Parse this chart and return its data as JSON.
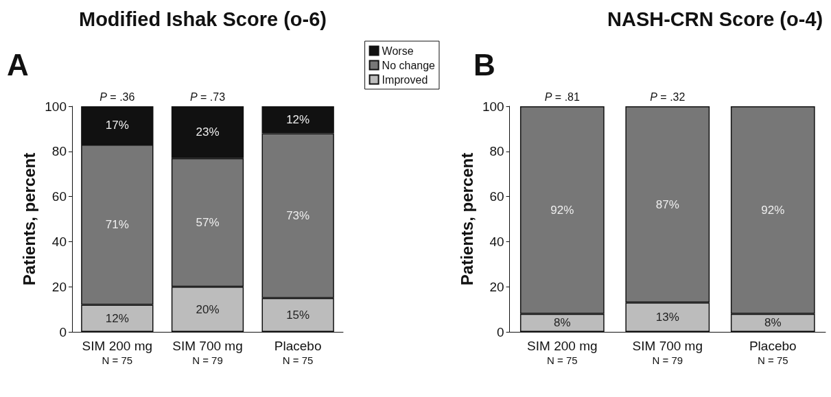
{
  "chart_data": [
    {
      "type": "bar",
      "title": "Modified Ishak Score (o-6)",
      "ylabel": "Patients, percent",
      "stacked": true,
      "categories": [
        "SIM 200 mg\nN = 75",
        "SIM 700 mg\nN = 79",
        "Placebo\nN = 75"
      ],
      "series": [
        {
          "name": "Improved",
          "color": "#bcbcbc",
          "values": [
            12,
            20,
            15
          ],
          "value_labels": [
            "12%",
            "20%",
            "15%"
          ]
        },
        {
          "name": "No change",
          "color": "#777777",
          "values": [
            71,
            57,
            73
          ],
          "value_labels": [
            "71%",
            "57%",
            "73%"
          ]
        },
        {
          "name": "Worse",
          "color": "#111111",
          "values": [
            17,
            23,
            12
          ],
          "value_labels": [
            "17%",
            "23%",
            "12%"
          ]
        }
      ],
      "ylim": [
        0,
        100
      ],
      "yticks": [
        0,
        20,
        40,
        60,
        80,
        100
      ],
      "grid": false,
      "legend": "top right",
      "annotations": [
        "A",
        {
          "text": "P = .36",
          "x": "SIM 200 mg\nN = 75",
          "y": 100
        },
        {
          "text": "P = .73",
          "x": "SIM 700 mg\nN = 79",
          "y": 100
        }
      ]
    },
    {
      "type": "bar",
      "title": "NASH-CRN Score (o-4)",
      "ylabel": "Patients, percent",
      "stacked": true,
      "categories": [
        "SIM 200 mg\nN = 75",
        "SIM 700 mg\nN = 79",
        "Placebo\nN = 75"
      ],
      "series": [
        {
          "color": "#bcbcbc",
          "values": [
            8,
            13,
            8
          ],
          "value_labels": [
            "8%",
            "13%",
            "8%"
          ]
        },
        {
          "color": "#777777",
          "values": [
            92,
            87,
            92
          ],
          "value_labels": [
            "92%",
            "87%",
            "92%"
          ]
        }
      ],
      "ylim": [
        0,
        100
      ],
      "yticks": [
        0,
        20,
        40,
        60,
        80,
        100
      ],
      "grid": false,
      "legend": false,
      "annotations": [
        "B",
        {
          "text": "P = .81",
          "x": "SIM 200 mg\nN = 75",
          "y": 100
        },
        {
          "text": "P = .32",
          "x": "SIM 700 mg\nN = 79",
          "y": 100
        }
      ]
    }
  ]
}
